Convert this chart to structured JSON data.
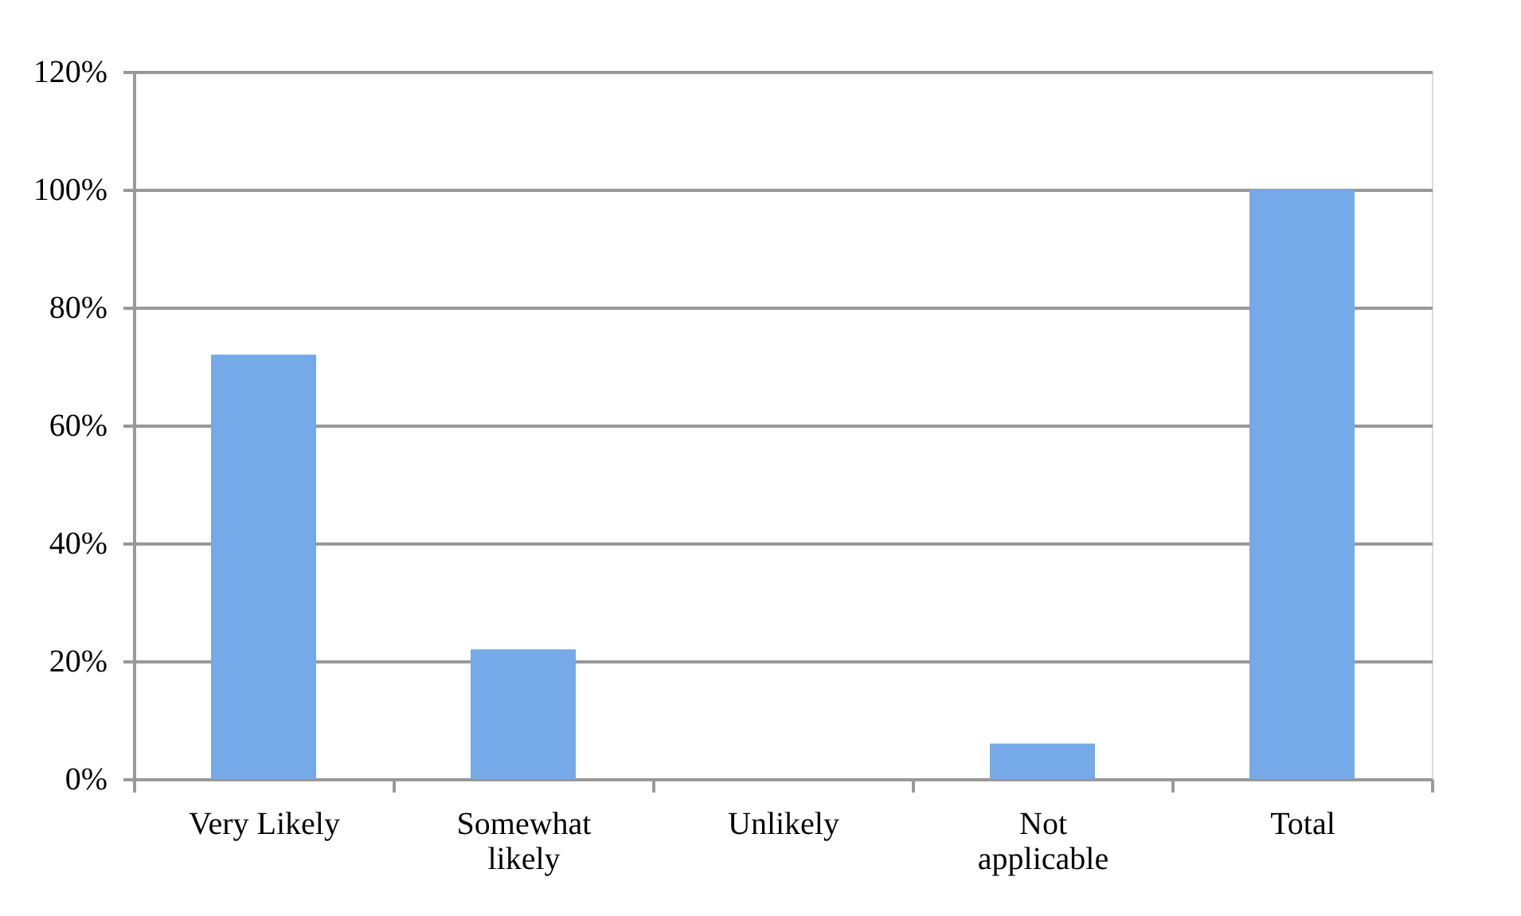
{
  "chart_data": {
    "type": "bar",
    "categories": [
      "Very Likely",
      "Somewhat likely",
      "Unlikely",
      "Not applicable",
      "Total"
    ],
    "values": [
      72,
      22,
      0,
      6,
      100
    ],
    "color": "#75a9e8",
    "ylim": [
      0,
      120
    ],
    "yticks": [
      {
        "value": 0,
        "label": "0%"
      },
      {
        "value": 20,
        "label": "20%"
      },
      {
        "value": 40,
        "label": "40%"
      },
      {
        "value": 60,
        "label": "60%"
      },
      {
        "value": 80,
        "label": "80%"
      },
      {
        "value": 100,
        "label": "100%"
      },
      {
        "value": 120,
        "label": "120%"
      }
    ],
    "grid": "y"
  }
}
